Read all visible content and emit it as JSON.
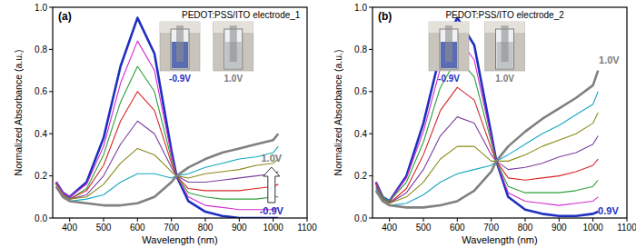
{
  "chart_data": [
    {
      "type": "line",
      "title": "(a)",
      "annotation": "PEDOT:PSS/ITO electrode_1",
      "inset_labels": [
        "-0.9V",
        "1.0V"
      ],
      "x_label": "Wavelength (nm)",
      "y_label": "Normalized Absorbance (a.u.)",
      "xlim": [
        350,
        1100
      ],
      "xticks": [
        400,
        500,
        600,
        700,
        800,
        900,
        1000,
        1100
      ],
      "ylim": [
        0,
        1.0
      ],
      "yticks": [
        {
          "value": 0,
          "label": "0.0"
        },
        {
          "value": 0.2,
          "label": "0.2"
        },
        {
          "value": 0.4,
          "label": "0.4"
        },
        {
          "value": 0.6,
          "label": "0.6"
        },
        {
          "value": 0.8,
          "label": "0.8"
        },
        {
          "value": 1.0,
          "label": "1.0"
        }
      ],
      "x": [
        360,
        380,
        400,
        450,
        500,
        550,
        600,
        650,
        700,
        715,
        750,
        800,
        850,
        900,
        950,
        1000,
        1015
      ],
      "series": [
        {
          "name": "-0.9V",
          "color": "#1f2fbf",
          "values": [
            0.17,
            0.12,
            0.1,
            0.17,
            0.38,
            0.72,
            0.95,
            0.78,
            0.32,
            0.2,
            0.08,
            0.03,
            0.01,
            0.0,
            0.0,
            0.0,
            0.0
          ]
        },
        {
          "color": "#d02bd0",
          "values": [
            0.17,
            0.12,
            0.1,
            0.16,
            0.34,
            0.64,
            0.84,
            0.7,
            0.3,
            0.2,
            0.1,
            0.06,
            0.05,
            0.04,
            0.04,
            0.04,
            0.05
          ]
        },
        {
          "color": "#2e9e3a",
          "values": [
            0.16,
            0.11,
            0.09,
            0.14,
            0.3,
            0.55,
            0.72,
            0.6,
            0.28,
            0.2,
            0.12,
            0.1,
            0.09,
            0.09,
            0.09,
            0.1,
            0.1
          ]
        },
        {
          "color": "#d62728",
          "values": [
            0.16,
            0.11,
            0.09,
            0.13,
            0.25,
            0.46,
            0.6,
            0.51,
            0.26,
            0.2,
            0.14,
            0.13,
            0.13,
            0.13,
            0.14,
            0.15,
            0.16
          ]
        },
        {
          "color": "#7b3fa0",
          "values": [
            0.16,
            0.11,
            0.09,
            0.11,
            0.2,
            0.35,
            0.46,
            0.4,
            0.24,
            0.2,
            0.17,
            0.17,
            0.18,
            0.19,
            0.2,
            0.21,
            0.22
          ]
        },
        {
          "color": "#8a8a1a",
          "values": [
            0.16,
            0.11,
            0.09,
            0.1,
            0.16,
            0.26,
            0.33,
            0.3,
            0.22,
            0.2,
            0.19,
            0.21,
            0.22,
            0.23,
            0.25,
            0.26,
            0.28
          ]
        },
        {
          "color": "#17a8c4",
          "values": [
            0.15,
            0.1,
            0.08,
            0.09,
            0.11,
            0.17,
            0.21,
            0.21,
            0.19,
            0.2,
            0.21,
            0.24,
            0.26,
            0.28,
            0.29,
            0.31,
            0.34
          ]
        },
        {
          "name": "1.0V",
          "color": "#808080",
          "values": [
            0.15,
            0.1,
            0.08,
            0.07,
            0.06,
            0.06,
            0.07,
            0.1,
            0.17,
            0.2,
            0.24,
            0.28,
            0.31,
            0.33,
            0.35,
            0.37,
            0.4
          ]
        }
      ]
    },
    {
      "type": "line",
      "title": "(b)",
      "annotation": "PEDOT:PSS/ITO electrode_2",
      "inset_labels": [
        "-0.9V",
        "1.0V"
      ],
      "x_label": "Wavelength (nm)",
      "y_label": "Normalized Absorbance (a.u.)",
      "xlim": [
        350,
        1100
      ],
      "xticks": [
        400,
        500,
        600,
        700,
        800,
        900,
        1000,
        1100
      ],
      "ylim": [
        0,
        1.0
      ],
      "yticks": [
        {
          "value": 0,
          "label": "0.0"
        },
        {
          "value": 0.2,
          "label": "0.2"
        },
        {
          "value": 0.4,
          "label": "0.4"
        },
        {
          "value": 0.6,
          "label": "0.6"
        },
        {
          "value": 0.8,
          "label": "0.8"
        },
        {
          "value": 1.0,
          "label": "1.0"
        }
      ],
      "x": [
        360,
        380,
        400,
        450,
        500,
        550,
        600,
        650,
        700,
        715,
        750,
        800,
        850,
        900,
        950,
        1000,
        1015
      ],
      "series": [
        {
          "name": "-0.9V",
          "color": "#1f2fbf",
          "values": [
            0.17,
            0.1,
            0.08,
            0.2,
            0.45,
            0.78,
            0.95,
            0.82,
            0.4,
            0.27,
            0.1,
            0.04,
            0.02,
            0.01,
            0.01,
            0.02,
            0.03
          ]
        },
        {
          "color": "#d02bd0",
          "values": [
            0.17,
            0.1,
            0.08,
            0.19,
            0.41,
            0.71,
            0.86,
            0.75,
            0.38,
            0.27,
            0.12,
            0.08,
            0.07,
            0.06,
            0.07,
            0.08,
            0.1
          ]
        },
        {
          "color": "#2e9e3a",
          "values": [
            0.16,
            0.1,
            0.08,
            0.17,
            0.36,
            0.62,
            0.76,
            0.67,
            0.36,
            0.27,
            0.15,
            0.12,
            0.12,
            0.12,
            0.13,
            0.15,
            0.18
          ]
        },
        {
          "color": "#d62728",
          "values": [
            0.16,
            0.09,
            0.07,
            0.14,
            0.3,
            0.51,
            0.62,
            0.56,
            0.33,
            0.27,
            0.19,
            0.18,
            0.19,
            0.2,
            0.22,
            0.25,
            0.28
          ]
        },
        {
          "color": "#7b3fa0",
          "values": [
            0.15,
            0.09,
            0.07,
            0.12,
            0.23,
            0.39,
            0.48,
            0.45,
            0.3,
            0.27,
            0.23,
            0.24,
            0.26,
            0.29,
            0.31,
            0.35,
            0.39
          ]
        },
        {
          "color": "#8a8a1a",
          "values": [
            0.14,
            0.09,
            0.07,
            0.1,
            0.17,
            0.28,
            0.34,
            0.34,
            0.27,
            0.27,
            0.27,
            0.3,
            0.34,
            0.37,
            0.4,
            0.45,
            0.5
          ]
        },
        {
          "color": "#17a8c4",
          "values": [
            0.14,
            0.08,
            0.06,
            0.07,
            0.11,
            0.17,
            0.21,
            0.23,
            0.25,
            0.27,
            0.3,
            0.35,
            0.4,
            0.44,
            0.49,
            0.54,
            0.6
          ]
        },
        {
          "name": "1.0V",
          "color": "#808080",
          "values": [
            0.13,
            0.08,
            0.06,
            0.05,
            0.05,
            0.06,
            0.08,
            0.13,
            0.22,
            0.27,
            0.34,
            0.41,
            0.47,
            0.52,
            0.57,
            0.63,
            0.7
          ]
        }
      ]
    }
  ]
}
